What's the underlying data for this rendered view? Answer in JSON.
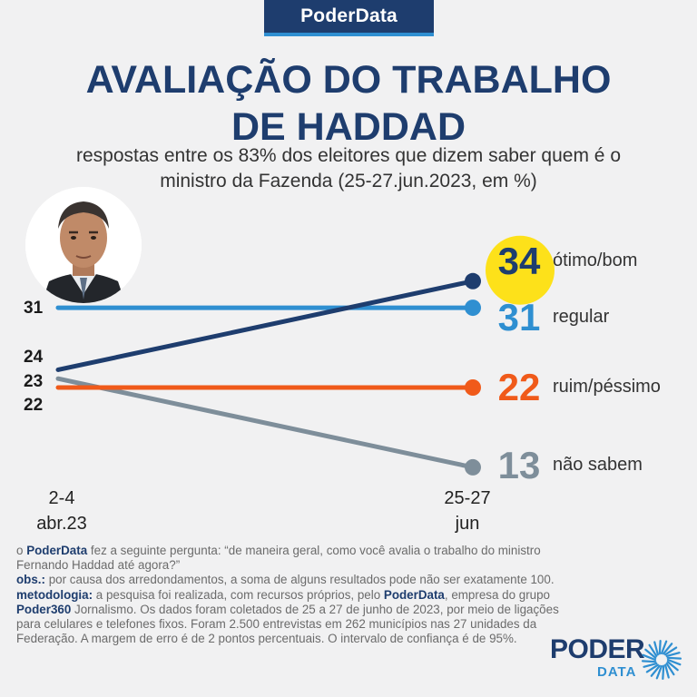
{
  "brand": "PoderData",
  "title_lines": [
    "AVALIAÇÃO DO TRABALHO",
    "DE HADDAD"
  ],
  "subtitle_lines": [
    "respostas entre os 83% dos eleitores que dizem saber quem é o",
    "ministro da Fazenda (25-27.jun.2023, em %)"
  ],
  "chart_data": {
    "type": "line",
    "x": [
      "2-4 abr.23",
      "25-27 jun"
    ],
    "x_label_lines": [
      [
        "2-4",
        "abr.23"
      ],
      [
        "25-27",
        "jun"
      ]
    ],
    "series": [
      {
        "name": "ótimo/bom",
        "values": [
          24,
          34
        ],
        "color": "#1e3d6e"
      },
      {
        "name": "regular",
        "values": [
          31,
          31
        ],
        "color": "#2f8fd1"
      },
      {
        "name": "ruim/péssimo",
        "values": [
          22,
          22
        ],
        "color": "#f05a1a"
      },
      {
        "name": "não sabem",
        "values": [
          23,
          13
        ],
        "color": "#7e8e9a"
      }
    ],
    "start_labels": [
      "31",
      "24",
      "23",
      "22"
    ],
    "end_labels": [
      "34",
      "31",
      "22",
      "13"
    ],
    "highlight": "ótimo/bom",
    "highlight_color": "#fde11a"
  },
  "notes": {
    "p1_prefix": "o",
    "p1_brand": "PoderData",
    "p1_text": "fez a seguinte pergunta: “de maneira geral, como você avalia o trabalho do ministro Fernando Haddad até agora?”",
    "obs_label": "obs.:",
    "obs_text": "por causa dos arredondamentos, a soma de alguns resultados pode não ser exatamente 100.",
    "met_label": "metodologia:",
    "met_text1": "a pesquisa foi realizada, com recursos próprios, pelo",
    "met_brand": "PoderData",
    "met_text2": ", empresa do grupo",
    "met_group": "Poder360",
    "met_text3": "Jornalismo. Os dados foram coletados de 25 a 27 de junho de 2023, por meio de ligações para celulares e telefones fixos. Foram 2.500 entrevistas em 262 municípios nas 27 unidades da Federação. A margem de erro é de 2 pontos percentuais. O intervalo de confiança é de 95%."
  },
  "logo": {
    "top": "PODER",
    "bottom": "DATA"
  }
}
